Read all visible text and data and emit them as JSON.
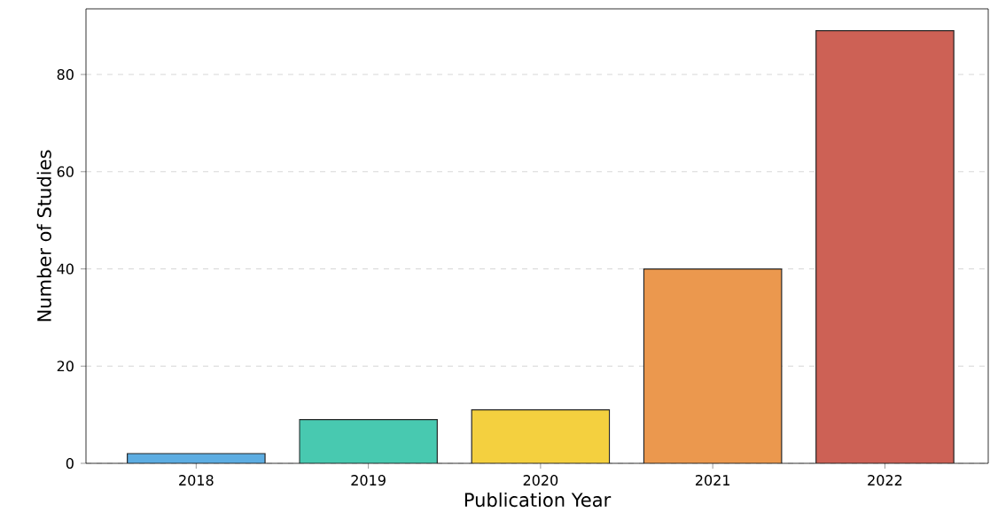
{
  "chart_data": {
    "type": "bar",
    "xlabel": "Publication Year",
    "ylabel": "Number of Studies",
    "categories": [
      "2018",
      "2019",
      "2020",
      "2021",
      "2022"
    ],
    "values": [
      2,
      9,
      11,
      40,
      89
    ],
    "colors": [
      "#5dade2",
      "#48c9b0",
      "#f4d03f",
      "#eb984e",
      "#cd6155"
    ],
    "ylim": [
      0,
      93.5
    ],
    "yticks": [
      0,
      20,
      40,
      60,
      80
    ],
    "grid": "y"
  }
}
